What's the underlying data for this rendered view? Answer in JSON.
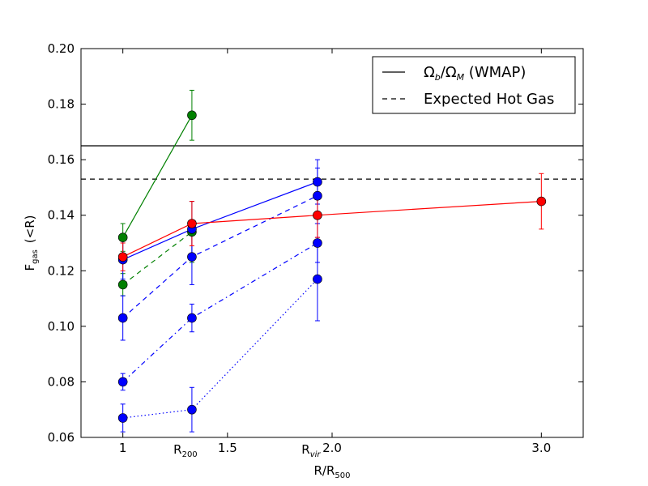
{
  "chart_data": {
    "type": "scatter",
    "title": "",
    "xlabel": "R/R",
    "xlabel_sub": "500",
    "ylabel": "F",
    "ylabel_sub": "gas",
    "ylabel_suffix": "(<R)",
    "xlim": [
      0.8,
      3.2
    ],
    "ylim": [
      0.06,
      0.2
    ],
    "grid": false,
    "x_ticks": [
      {
        "value": 1.0,
        "label": "1"
      },
      {
        "value": 1.5,
        "label": "1.5"
      },
      {
        "value": 2.0,
        "label": "2.0"
      },
      {
        "value": 3.0,
        "label": "3.0"
      }
    ],
    "x_special_ticks": [
      {
        "value": 1.33,
        "label": "R",
        "sub": "200"
      },
      {
        "value": 1.93,
        "label": "R",
        "sub": "vir"
      }
    ],
    "y_ticks": [
      {
        "value": 0.06,
        "label": "0.06"
      },
      {
        "value": 0.08,
        "label": "0.08"
      },
      {
        "value": 0.1,
        "label": "0.10"
      },
      {
        "value": 0.12,
        "label": "0.12"
      },
      {
        "value": 0.14,
        "label": "0.14"
      },
      {
        "value": 0.16,
        "label": "0.16"
      },
      {
        "value": 0.18,
        "label": "0.18"
      },
      {
        "value": 0.2,
        "label": "0.20"
      }
    ],
    "reference_lines": [
      {
        "y": 0.165,
        "style": "solid",
        "color": "#000000"
      },
      {
        "y": 0.153,
        "style": "dashed",
        "color": "#000000"
      }
    ],
    "legend": {
      "placement": "top-right",
      "entries": [
        {
          "label": "Ω_b/Ω_M (WMAP)",
          "style": "solid",
          "color": "#000000"
        },
        {
          "label": "Expected Hot Gas",
          "style": "dashed",
          "color": "#000000"
        }
      ]
    },
    "series": [
      {
        "color": "#008000",
        "line": "solid",
        "x": [
          1.0,
          1.33
        ],
        "y": [
          0.132,
          0.176
        ],
        "err": [
          0.005,
          0.009
        ]
      },
      {
        "color": "#008000",
        "line": "dashed",
        "x": [
          1.0,
          1.33
        ],
        "y": [
          0.115,
          0.134
        ],
        "err": [
          0.004,
          0.011
        ]
      },
      {
        "color": "#0000ff",
        "line": "solid",
        "x": [
          1.0,
          1.33,
          1.93
        ],
        "y": [
          0.124,
          0.135,
          0.152
        ],
        "err": [
          0.007,
          0.01,
          0.008
        ]
      },
      {
        "color": "#0000ff",
        "line": "dashed",
        "x": [
          1.0,
          1.33,
          1.93
        ],
        "y": [
          0.103,
          0.125,
          0.147
        ],
        "err": [
          0.008,
          0.01,
          0.01
        ]
      },
      {
        "color": "#0000ff",
        "line": "dashdot",
        "x": [
          1.0,
          1.33,
          1.93
        ],
        "y": [
          0.08,
          0.103,
          0.13
        ],
        "err": [
          0.003,
          0.005,
          0.007
        ]
      },
      {
        "color": "#0000ff",
        "line": "dotted",
        "x": [
          1.0,
          1.33,
          1.93
        ],
        "y": [
          0.067,
          0.07,
          0.117
        ],
        "err": [
          0.005,
          0.008,
          0.015
        ]
      },
      {
        "color": "#ff0000",
        "line": "solid",
        "x": [
          1.0,
          1.33,
          1.93,
          3.0
        ],
        "y": [
          0.125,
          0.137,
          0.14,
          0.145
        ],
        "err": [
          0.005,
          0.008,
          0.008,
          0.01
        ]
      }
    ]
  }
}
